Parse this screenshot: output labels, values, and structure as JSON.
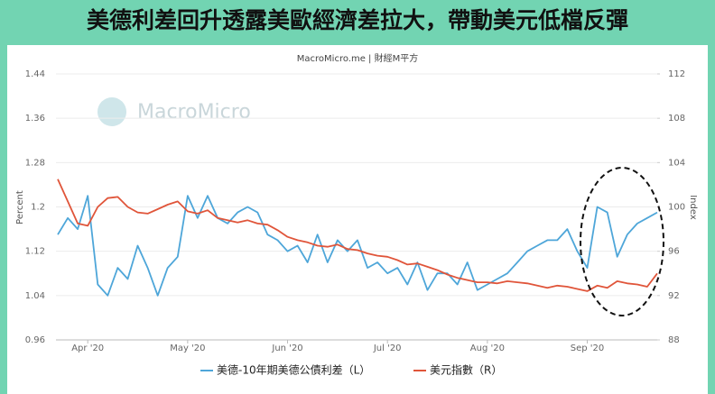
{
  "chart_data": {
    "type": "line",
    "title": "美德利差回升透露美歐經濟差拉大，帶動美元低檔反彈",
    "source": "MacroMicro.me | 財經M平方",
    "watermark": "MacroMicro",
    "ylabel": "Percent",
    "y2label": "Index",
    "categories": [
      null,
      null,
      null,
      "Apr '20",
      null,
      null,
      null,
      null,
      null,
      null,
      null,
      null,
      null,
      "May '20",
      null,
      null,
      null,
      null,
      null,
      null,
      null,
      null,
      null,
      "Jun '20",
      null,
      null,
      null,
      null,
      null,
      null,
      null,
      null,
      null,
      "Jul '20",
      null,
      null,
      null,
      null,
      null,
      null,
      null,
      null,
      null,
      "Aug '20",
      null,
      null,
      null,
      null,
      null,
      null,
      null,
      null,
      null,
      "Sep '20",
      null,
      null,
      null,
      null,
      null,
      null,
      null
    ],
    "series": [
      {
        "name": "美德-10年期美德公債利差（L）",
        "color": "#4ea6d9",
        "values": [
          1.15,
          1.18,
          1.16,
          1.22,
          1.06,
          1.04,
          1.09,
          1.07,
          1.13,
          1.09,
          1.04,
          1.09,
          1.11,
          1.22,
          1.18,
          1.22,
          1.18,
          1.17,
          1.19,
          1.2,
          1.19,
          1.15,
          1.14,
          1.12,
          1.13,
          1.1,
          1.15,
          1.1,
          1.14,
          1.12,
          1.14,
          1.09,
          1.1,
          1.08,
          1.09,
          1.06,
          1.1,
          1.05,
          1.08,
          1.08,
          1.06,
          1.1,
          1.05,
          1.06,
          1.07,
          1.08,
          1.1,
          1.12,
          1.13,
          1.14,
          1.14,
          1.16,
          1.12,
          1.09,
          1.2,
          1.19,
          1.11,
          1.15,
          1.17,
          1.18,
          1.19
        ]
      },
      {
        "name": "美元指數（R）",
        "color": "#e0553a",
        "axis": "y2",
        "values": [
          102.5,
          100.5,
          98.5,
          98.3,
          100,
          100.8,
          100.9,
          100,
          99.5,
          99.4,
          99.8,
          100.2,
          100.5,
          99.6,
          99.4,
          99.7,
          99,
          98.8,
          98.6,
          98.8,
          98.5,
          98.4,
          97.9,
          97.3,
          97,
          96.8,
          96.5,
          96.4,
          96.6,
          96.2,
          96.1,
          95.8,
          95.6,
          95.5,
          95.2,
          94.8,
          94.9,
          94.6,
          94.3,
          93.9,
          93.6,
          93.4,
          93.2,
          93.2,
          93.1,
          93.3,
          93.2,
          93.1,
          92.9,
          92.7,
          92.9,
          92.8,
          92.6,
          92.4,
          92.9,
          92.7,
          93.3,
          93.1,
          93,
          92.8,
          94
        ]
      }
    ],
    "ylim": [
      0.96,
      1.44
    ],
    "yticks": [
      0.96,
      1.04,
      1.12,
      1.2,
      1.28,
      1.36,
      1.44
    ],
    "y2lim": [
      88,
      112
    ],
    "y2ticks": [
      88,
      92,
      96,
      100,
      104,
      108,
      112
    ],
    "grid": true
  }
}
